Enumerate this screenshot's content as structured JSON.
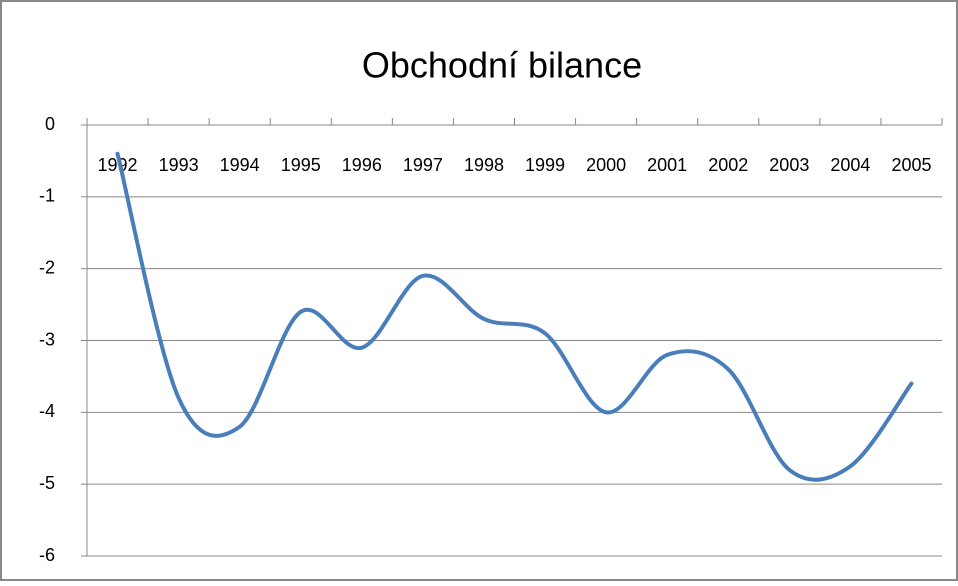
{
  "chart_data": {
    "type": "line",
    "title": "Obchodní bilance",
    "categories": [
      "1992",
      "1993",
      "1994",
      "1995",
      "1996",
      "1997",
      "1998",
      "1999",
      "2000",
      "2001",
      "2002",
      "2003",
      "2004",
      "2005"
    ],
    "series": [
      {
        "name": "Obchodní bilance",
        "color": "#4a7ebb",
        "values": [
          -0.4,
          -3.8,
          -4.2,
          -2.6,
          -3.1,
          -2.1,
          -2.7,
          -2.9,
          -4.0,
          -3.2,
          -3.4,
          -4.8,
          -4.75,
          -3.6
        ]
      }
    ],
    "ylim": [
      -6,
      0
    ],
    "yticks": [
      0,
      -1,
      -2,
      -3,
      -4,
      -5,
      -6
    ],
    "grid": true,
    "smooth": true
  }
}
